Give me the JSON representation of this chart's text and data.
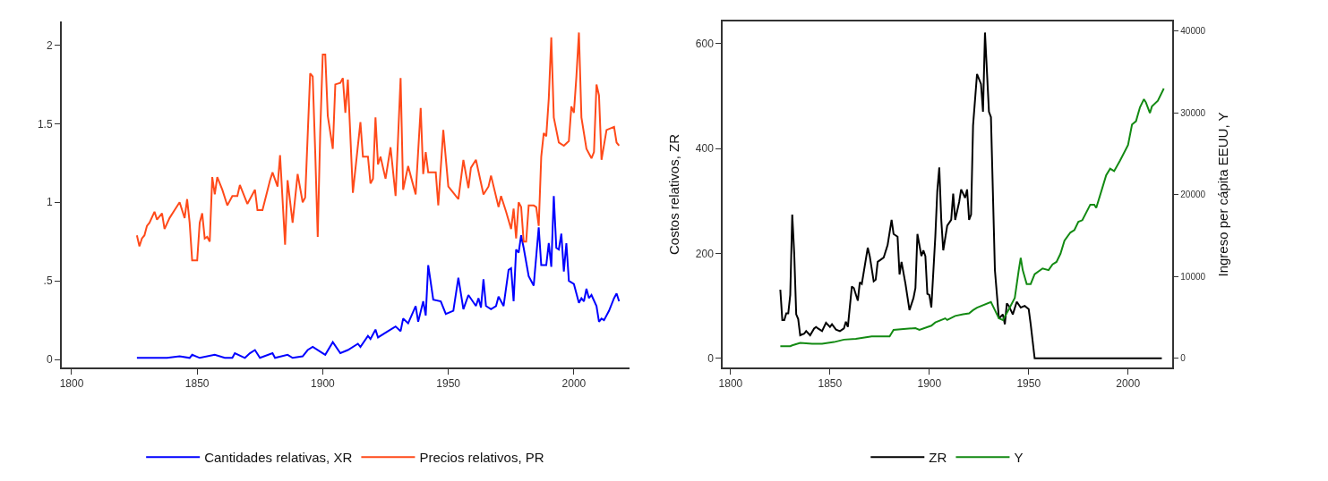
{
  "chart_data": [
    {
      "type": "line",
      "xlim": [
        1796,
        2022
      ],
      "xticks": [
        1800,
        1850,
        1900,
        1950,
        2000
      ],
      "ylim": [
        -0.05,
        2.15
      ],
      "yticks": [
        0,
        {
          "value": 0.5,
          "label": ".5"
        },
        1,
        {
          "value": 1.5,
          "label": "1.5"
        },
        2
      ],
      "legend": "bottom",
      "marker": "none",
      "line_style": "solid",
      "series": [
        {
          "name": "Cantidades relativas, XR",
          "color": "#0000ff",
          "x": [
            1826,
            1838,
            1843,
            1847,
            1848,
            1851,
            1857,
            1861,
            1864,
            1865,
            1869,
            1871,
            1873,
            1875,
            1880,
            1881,
            1886,
            1888,
            1892,
            1894,
            1896,
            1900,
            1901,
            1904,
            1907,
            1910,
            1914,
            1915,
            1918,
            1919,
            1921,
            1922,
            1926,
            1929,
            1931,
            1932,
            1934,
            1937,
            1938,
            1940,
            1941,
            1942,
            1944,
            1947,
            1949,
            1952,
            1954,
            1956,
            1958,
            1961,
            1962,
            1963,
            1964,
            1965,
            1967,
            1969,
            1970,
            1972,
            1974,
            1975,
            1976,
            1977,
            1978,
            1979,
            1980,
            1982,
            1984,
            1986,
            1987,
            1989,
            1990,
            1991,
            1992,
            1993,
            1994,
            1995,
            1996,
            1997,
            1998,
            2000,
            2002,
            2003,
            2004,
            2005,
            2006,
            2007,
            2009,
            2010,
            2011,
            2012,
            2014,
            2016,
            2017,
            2018
          ],
          "values": [
            0.01,
            0.01,
            0.02,
            0.01,
            0.03,
            0.01,
            0.03,
            0.01,
            0.01,
            0.04,
            0.01,
            0.04,
            0.06,
            0.01,
            0.04,
            0.01,
            0.03,
            0.01,
            0.02,
            0.06,
            0.08,
            0.04,
            0.03,
            0.11,
            0.04,
            0.06,
            0.1,
            0.08,
            0.15,
            0.13,
            0.19,
            0.14,
            0.18,
            0.21,
            0.18,
            0.26,
            0.23,
            0.34,
            0.24,
            0.37,
            0.28,
            0.6,
            0.38,
            0.37,
            0.29,
            0.31,
            0.52,
            0.32,
            0.41,
            0.34,
            0.39,
            0.33,
            0.51,
            0.34,
            0.32,
            0.34,
            0.4,
            0.34,
            0.57,
            0.58,
            0.37,
            0.7,
            0.68,
            0.79,
            0.71,
            0.53,
            0.47,
            0.84,
            0.6,
            0.6,
            0.74,
            0.59,
            1.04,
            0.71,
            0.7,
            0.8,
            0.56,
            0.74,
            0.5,
            0.48,
            0.36,
            0.39,
            0.37,
            0.45,
            0.39,
            0.41,
            0.34,
            0.24,
            0.26,
            0.25,
            0.31,
            0.39,
            0.42,
            0.37
          ]
        },
        {
          "name": "Precios relativos, PR",
          "color": "#ff4a1a",
          "x": [
            1826,
            1827,
            1828,
            1829,
            1830,
            1831,
            1833,
            1834,
            1836,
            1837,
            1839,
            1841,
            1843,
            1845,
            1846,
            1847,
            1848,
            1850,
            1851,
            1852,
            1853,
            1854,
            1855,
            1856,
            1857,
            1858,
            1860,
            1862,
            1864,
            1866,
            1867,
            1870,
            1871,
            1873,
            1874,
            1876,
            1879,
            1880,
            1882,
            1883,
            1885,
            1886,
            1888,
            1890,
            1892,
            1893,
            1895,
            1896,
            1897,
            1898,
            1899,
            1900,
            1901,
            1902,
            1904,
            1905,
            1907,
            1908,
            1909,
            1910,
            1912,
            1915,
            1916,
            1918,
            1919,
            1920,
            1921,
            1922,
            1923,
            1925,
            1927,
            1929,
            1931,
            1932,
            1934,
            1935,
            1937,
            1939,
            1940,
            1941,
            1942,
            1945,
            1946,
            1948,
            1950,
            1952,
            1954,
            1956,
            1958,
            1959,
            1961,
            1964,
            1966,
            1967,
            1970,
            1971,
            1973,
            1975,
            1976,
            1977,
            1978,
            1979,
            1980,
            1981,
            1982,
            1984,
            1985,
            1986,
            1987,
            1988,
            1989,
            1990,
            1991,
            1992,
            1994,
            1996,
            1998,
            1999,
            2000,
            2001,
            2002,
            2003,
            2005,
            2007,
            2008,
            2009,
            2010,
            2011,
            2013,
            2016,
            2017,
            2018
          ],
          "values": [
            0.79,
            0.72,
            0.77,
            0.79,
            0.85,
            0.87,
            0.94,
            0.89,
            0.93,
            0.83,
            0.9,
            0.95,
            1.0,
            0.9,
            1.02,
            0.87,
            0.63,
            0.63,
            0.87,
            0.93,
            0.77,
            0.78,
            0.75,
            1.16,
            1.05,
            1.16,
            1.08,
            0.98,
            1.04,
            1.04,
            1.11,
            0.99,
            1.02,
            1.08,
            0.95,
            0.95,
            1.14,
            1.19,
            1.1,
            1.3,
            0.73,
            1.14,
            0.87,
            1.18,
            1.0,
            1.03,
            1.82,
            1.8,
            1.32,
            0.78,
            1.45,
            1.94,
            1.94,
            1.55,
            1.34,
            1.75,
            1.76,
            1.79,
            1.57,
            1.78,
            1.06,
            1.51,
            1.29,
            1.29,
            1.12,
            1.15,
            1.54,
            1.24,
            1.29,
            1.15,
            1.35,
            1.04,
            1.79,
            1.08,
            1.23,
            1.17,
            1.05,
            1.6,
            1.18,
            1.32,
            1.19,
            1.19,
            0.98,
            1.46,
            1.1,
            1.06,
            1.02,
            1.27,
            1.09,
            1.22,
            1.27,
            1.05,
            1.1,
            1.17,
            0.97,
            1.04,
            0.94,
            0.83,
            0.96,
            0.77,
            1.0,
            0.97,
            0.75,
            0.75,
            0.98,
            0.98,
            0.97,
            0.85,
            1.29,
            1.44,
            1.42,
            1.66,
            2.05,
            1.54,
            1.38,
            1.36,
            1.39,
            1.61,
            1.57,
            1.8,
            2.08,
            1.54,
            1.34,
            1.28,
            1.32,
            1.75,
            1.68,
            1.27,
            1.46,
            1.48,
            1.38,
            1.36
          ]
        }
      ]
    },
    {
      "type": "line",
      "xlim": [
        1796,
        2022
      ],
      "xticks": [
        1800,
        1850,
        1900,
        1950,
        2000
      ],
      "ylim": [
        -17,
        642
      ],
      "yticks": [
        0,
        200,
        400,
        600
      ],
      "y2lim": [
        -1087,
        41190
      ],
      "y2ticks": [
        0,
        10000,
        20000,
        30000,
        40000
      ],
      "ylabel": "Costos relativos, ZR",
      "y2label": "Ingreso per cápita EEUU, Y",
      "legend": "bottom",
      "marker": "none",
      "line_style": "solid",
      "series": [
        {
          "name": "ZR",
          "color": "#000000",
          "x": [
            1825,
            1826,
            1827,
            1828,
            1829,
            1830,
            1831,
            1832,
            1833,
            1834,
            1835,
            1837,
            1838,
            1840,
            1842,
            1843,
            1844,
            1846,
            1848,
            1850,
            1851,
            1853,
            1855,
            1857,
            1858,
            1859,
            1861,
            1862,
            1864,
            1865,
            1866,
            1869,
            1870,
            1872,
            1873,
            1874,
            1877,
            1879,
            1881,
            1882,
            1884,
            1885,
            1886,
            1888,
            1890,
            1892,
            1893,
            1894,
            1896,
            1897,
            1898,
            1899,
            1900,
            1901,
            1903,
            1904,
            1905,
            1906,
            1907,
            1909,
            1911,
            1912,
            1913,
            1915,
            1916,
            1918,
            1919,
            1920,
            1921,
            1922,
            1924,
            1926,
            1927,
            1928,
            1930,
            1931,
            1933,
            1935,
            1937,
            1938,
            1939,
            1940,
            1942,
            1944,
            1946,
            1948,
            1950,
            1951,
            1953,
            2017
          ],
          "values": [
            131,
            73,
            73,
            86,
            86,
            121,
            274,
            200,
            84,
            75,
            44,
            47,
            52,
            44,
            57,
            60,
            57,
            52,
            68,
            60,
            65,
            55,
            52,
            57,
            70,
            60,
            137,
            134,
            110,
            145,
            142,
            211,
            195,
            147,
            150,
            184,
            192,
            216,
            264,
            237,
            232,
            160,
            184,
            142,
            92,
            115,
            134,
            237,
            195,
            206,
            195,
            123,
            121,
            97,
            232,
            319,
            364,
            264,
            206,
            253,
            264,
            314,
            264,
            298,
            322,
            306,
            322,
            264,
            274,
            444,
            542,
            523,
            470,
            621,
            470,
            460,
            168,
            76,
            84,
            65,
            105,
            100,
            84,
            108,
            97,
            100,
            94,
            65,
            0,
            0
          ]
        },
        {
          "name": "Y",
          "color": "#138a13",
          "axis": "y2",
          "x": [
            1825,
            1830,
            1831,
            1835,
            1841,
            1846,
            1852,
            1857,
            1863,
            1871,
            1880,
            1882,
            1887,
            1893,
            1895,
            1901,
            1903,
            1908,
            1909,
            1913,
            1917,
            1920,
            1922,
            1924,
            1931,
            1933,
            1935,
            1937,
            1940,
            1943,
            1945,
            1946,
            1947,
            1949,
            1951,
            1953,
            1957,
            1960,
            1962,
            1964,
            1966,
            1968,
            1971,
            1973,
            1975,
            1977,
            1981,
            1983,
            1984,
            1987,
            1989,
            1991,
            1993,
            1996,
            2000,
            2002,
            2004,
            2006,
            2008,
            2009,
            2011,
            2012,
            2015,
            2018
          ],
          "values": [
            1500,
            1500,
            1600,
            1900,
            1800,
            1800,
            2000,
            2300,
            2400,
            2700,
            2700,
            3500,
            3600,
            3700,
            3500,
            4000,
            4400,
            4900,
            4700,
            5200,
            5400,
            5500,
            5900,
            6200,
            6900,
            5900,
            4900,
            4700,
            6000,
            7400,
            10800,
            12300,
            10800,
            9100,
            9100,
            10300,
            11000,
            10800,
            11500,
            11800,
            12800,
            14400,
            15400,
            15700,
            16700,
            16900,
            18800,
            18800,
            18400,
            20800,
            22400,
            23200,
            22900,
            24200,
            26100,
            28600,
            29000,
            30700,
            31700,
            31300,
            30000,
            30800,
            31500,
            33000
          ]
        }
      ]
    }
  ]
}
